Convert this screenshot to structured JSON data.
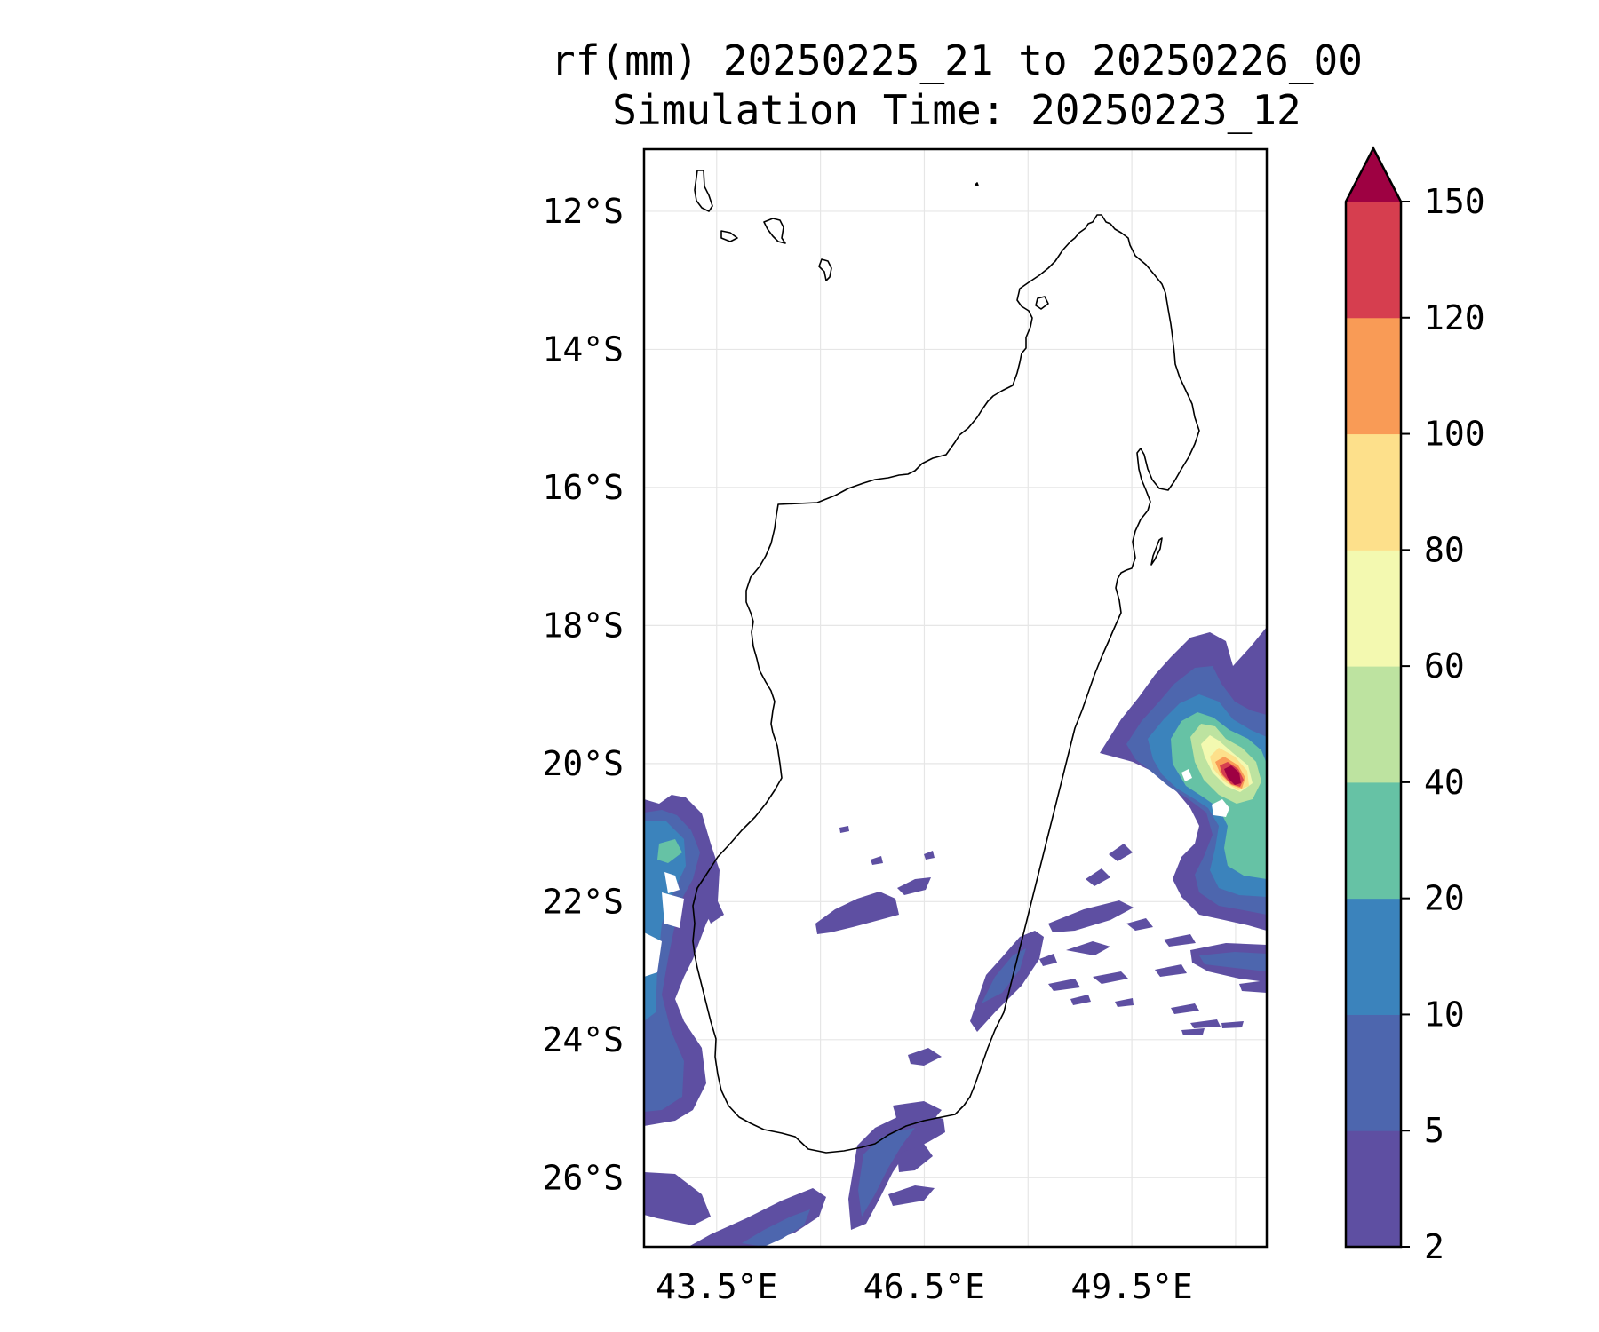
{
  "title": {
    "line1": "rf(mm) 20250225_21 to 20250226_00",
    "line2": "Simulation Time: 20250223_12"
  },
  "map": {
    "region": "Madagascar",
    "lon_range": [
      42.45,
      51.45
    ],
    "lat_range": [
      -27.0,
      -11.1
    ],
    "lat_ticks": [
      {
        "value": -12,
        "label": "12°S"
      },
      {
        "value": -14,
        "label": "14°S"
      },
      {
        "value": -16,
        "label": "16°S"
      },
      {
        "value": -18,
        "label": "18°S"
      },
      {
        "value": -20,
        "label": "20°S"
      },
      {
        "value": -22,
        "label": "22°S"
      },
      {
        "value": -24,
        "label": "24°S"
      },
      {
        "value": -26,
        "label": "26°S"
      }
    ],
    "lon_ticks": [
      {
        "value": 43.5,
        "label": "43.5°E"
      },
      {
        "value": 46.5,
        "label": "46.5°E"
      },
      {
        "value": 49.5,
        "label": "49.5°E"
      }
    ],
    "grid_lons": [
      43.5,
      45.0,
      46.5,
      48.0,
      49.5,
      51.0
    ],
    "grid": true
  },
  "colorbar": {
    "levels": [
      {
        "value": 2,
        "label": "2"
      },
      {
        "value": 5,
        "label": "5"
      },
      {
        "value": 10,
        "label": "10"
      },
      {
        "value": 20,
        "label": "20"
      },
      {
        "value": 40,
        "label": "40"
      },
      {
        "value": 60,
        "label": "60"
      },
      {
        "value": 80,
        "label": "80"
      },
      {
        "value": 100,
        "label": "100"
      },
      {
        "value": 120,
        "label": "120"
      },
      {
        "value": 150,
        "label": "150"
      }
    ],
    "colors": [
      "#5e4fa2",
      "#4d66ae",
      "#3b83bc",
      "#66c2a5",
      "#bde3a0",
      "#f3f9b0",
      "#fde08b",
      "#f99b56",
      "#d63e4f"
    ],
    "extend_color": "#9e0142"
  }
}
